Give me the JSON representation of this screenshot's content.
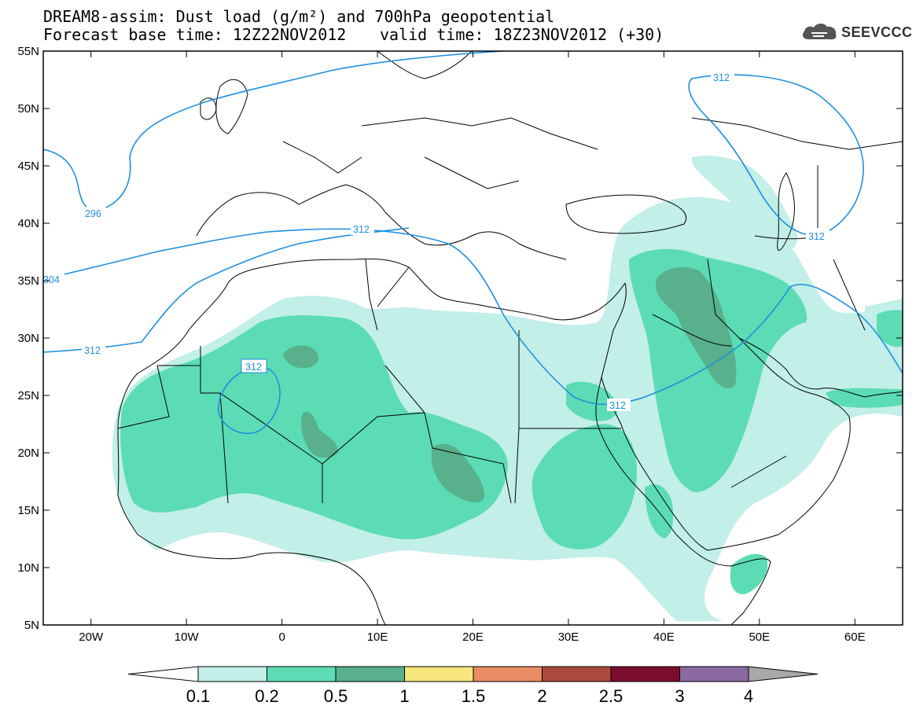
{
  "header": {
    "title_line1": "DREAM8-assim: Dust load (g/m²) and 700hPa geopotential",
    "title_line2": "Forecast base time: 12Z22NOV2012",
    "valid_time": "valid time: 18Z23NOV2012 (+30)",
    "logo_text": "SEEVCCC",
    "logo_icon": "cloud-icon"
  },
  "map": {
    "lon_range": [
      -25,
      65
    ],
    "lat_range": [
      5,
      55
    ],
    "lat_labels": [
      "55N",
      "50N",
      "45N",
      "40N",
      "35N",
      "30N",
      "25N",
      "20N",
      "15N",
      "10N",
      "5N"
    ],
    "lon_labels": [
      "20W",
      "10W",
      "0",
      "10E",
      "20E",
      "30E",
      "40E",
      "50E",
      "60E"
    ],
    "contour_labels": [
      "296",
      "304",
      "312",
      "312",
      "312",
      "312",
      "312",
      "312"
    ],
    "colors": {
      "dust_0_1": "#c2efe8",
      "dust_0_2": "#5cdcb4",
      "dust_0_5": "#58b08c",
      "contour": "#1e90e0",
      "border": "#000000"
    }
  },
  "colorbar": {
    "levels": [
      "0.1",
      "0.2",
      "0.5",
      "1",
      "1.5",
      "2",
      "2.5",
      "3",
      "4"
    ],
    "colors": [
      "#c2efe8",
      "#5cdcb4",
      "#58b08c",
      "#f6e67c",
      "#e88c64",
      "#aa4a3c",
      "#7c0c2c",
      "#8a6aa0",
      "#a8a8a8"
    ],
    "under_color": "#ffffff"
  }
}
